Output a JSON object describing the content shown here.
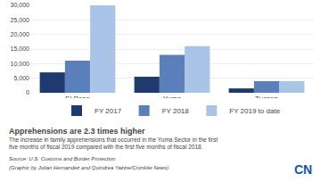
{
  "chart_data": {
    "type": "bar",
    "categories": [
      "El Paso",
      "Yuma",
      "Tucson"
    ],
    "series": [
      {
        "name": "FY 2017",
        "color": "#1e3a6e",
        "values": [
          7000,
          5500,
          1500
        ]
      },
      {
        "name": "FY 2018",
        "color": "#5b7fba",
        "values": [
          11000,
          13000,
          4000
        ]
      },
      {
        "name": "FY 2019 to date",
        "color": "#aac4e8",
        "values": [
          30000,
          16000,
          4000
        ]
      }
    ],
    "ylim": [
      0,
      30000
    ],
    "yticks": [
      0,
      {
        "value": 5000,
        "label": "5,000"
      },
      {
        "value": 10000,
        "label": "10,000"
      },
      {
        "value": 15000,
        "label": "15,000"
      },
      {
        "value": 20000,
        "label": "20,000"
      },
      {
        "value": 25000,
        "label": "25,000"
      },
      {
        "value": 30000,
        "label": "30,000"
      }
    ],
    "grid": true,
    "legend": "bottom",
    "annotations": [
      {
        "text": "Apprehensions are 2.3 times higher"
      },
      {
        "text": "The increase in family apprehensions that occurred in the Yuma Sector in the first\nfive months of fiscal 2019 compared with the first five months of fiscal 2018."
      },
      {
        "text": "Source: U.S. Customs and Border Protection"
      },
      {
        "text": "(Graphic by Julian Hernandez and Quindrea Yazzie/Cronkite News)"
      },
      {
        "text": "CN",
        "color": "#1155bb"
      }
    ]
  }
}
